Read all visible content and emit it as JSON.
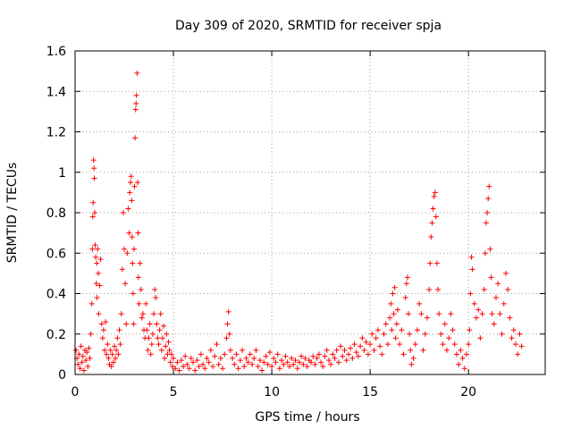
{
  "chart_data": {
    "type": "scatter",
    "title": "Day 309 of 2020, SRMTID for receiver spja",
    "xlabel": "GPS time / hours",
    "ylabel": "SRMTID / TECUs",
    "xlim": [
      0,
      23.9
    ],
    "ylim": [
      0,
      1.6
    ],
    "x_ticks": [
      0,
      5,
      10,
      15,
      20
    ],
    "x_tick_labels": [
      "0",
      "5",
      "10",
      "15",
      "20"
    ],
    "y_ticks": [
      0,
      0.2,
      0.4,
      0.6,
      0.8,
      1.0,
      1.2,
      1.4,
      1.6
    ],
    "y_tick_labels": [
      "0",
      "0.2",
      "0.4",
      "0.6",
      "0.8",
      "1",
      "1.2",
      "1.4",
      "1.6"
    ],
    "grid": true,
    "marker": "plus",
    "color": "#ff0000",
    "series": [
      {
        "name": "SRMTID",
        "points": [
          [
            0.05,
            0.12
          ],
          [
            0.1,
            0.08
          ],
          [
            0.15,
            0.05
          ],
          [
            0.2,
            0.1
          ],
          [
            0.25,
            0.03
          ],
          [
            0.3,
            0.14
          ],
          [
            0.35,
            0.06
          ],
          [
            0.4,
            0.09
          ],
          [
            0.45,
            0.02
          ],
          [
            0.5,
            0.12
          ],
          [
            0.55,
            0.07
          ],
          [
            0.6,
            0.11
          ],
          [
            0.65,
            0.04
          ],
          [
            0.7,
            0.13
          ],
          [
            0.75,
            0.08
          ],
          [
            0.8,
            0.2
          ],
          [
            0.85,
            0.35
          ],
          [
            0.88,
            0.62
          ],
          [
            0.9,
            0.78
          ],
          [
            0.92,
            0.85
          ],
          [
            0.94,
            1.06
          ],
          [
            0.96,
            1.02
          ],
          [
            0.98,
            0.97
          ],
          [
            1.0,
            0.8
          ],
          [
            1.02,
            0.64
          ],
          [
            1.05,
            0.58
          ],
          [
            1.08,
            0.45
          ],
          [
            1.1,
            0.55
          ],
          [
            1.12,
            0.38
          ],
          [
            1.15,
            0.62
          ],
          [
            1.18,
            0.5
          ],
          [
            1.2,
            0.3
          ],
          [
            1.25,
            0.44
          ],
          [
            1.3,
            0.57
          ],
          [
            1.35,
            0.25
          ],
          [
            1.4,
            0.18
          ],
          [
            1.45,
            0.22
          ],
          [
            1.5,
            0.12
          ],
          [
            1.55,
            0.26
          ],
          [
            1.6,
            0.1
          ],
          [
            1.65,
            0.15
          ],
          [
            1.7,
            0.08
          ],
          [
            1.75,
            0.05
          ],
          [
            1.8,
            0.12
          ],
          [
            1.85,
            0.04
          ],
          [
            1.9,
            0.1
          ],
          [
            1.95,
            0.06
          ],
          [
            2.0,
            0.14
          ],
          [
            2.05,
            0.08
          ],
          [
            2.1,
            0.12
          ],
          [
            2.15,
            0.18
          ],
          [
            2.2,
            0.1
          ],
          [
            2.25,
            0.22
          ],
          [
            2.3,
            0.15
          ],
          [
            2.35,
            0.3
          ],
          [
            2.4,
            0.52
          ],
          [
            2.45,
            0.8
          ],
          [
            2.5,
            0.62
          ],
          [
            2.55,
            0.45
          ],
          [
            2.6,
            0.25
          ],
          [
            2.65,
            0.6
          ],
          [
            2.7,
            0.82
          ],
          [
            2.75,
            0.7
          ],
          [
            2.78,
            0.9
          ],
          [
            2.82,
            0.95
          ],
          [
            2.85,
            0.98
          ],
          [
            2.88,
            0.86
          ],
          [
            2.9,
            0.68
          ],
          [
            2.92,
            0.55
          ],
          [
            2.95,
            0.4
          ],
          [
            2.98,
            0.25
          ],
          [
            3.0,
            0.62
          ],
          [
            3.02,
            0.93
          ],
          [
            3.05,
            1.17
          ],
          [
            3.08,
            1.31
          ],
          [
            3.1,
            1.34
          ],
          [
            3.12,
            1.38
          ],
          [
            3.15,
            1.49
          ],
          [
            3.18,
            0.95
          ],
          [
            3.2,
            0.7
          ],
          [
            3.22,
            0.48
          ],
          [
            3.25,
            0.35
          ],
          [
            3.3,
            0.55
          ],
          [
            3.35,
            0.42
          ],
          [
            3.4,
            0.28
          ],
          [
            3.45,
            0.3
          ],
          [
            3.5,
            0.22
          ],
          [
            3.55,
            0.18
          ],
          [
            3.6,
            0.35
          ],
          [
            3.65,
            0.22
          ],
          [
            3.7,
            0.12
          ],
          [
            3.75,
            0.18
          ],
          [
            3.8,
            0.25
          ],
          [
            3.85,
            0.1
          ],
          [
            3.9,
            0.15
          ],
          [
            3.95,
            0.2
          ],
          [
            4.0,
            0.3
          ],
          [
            4.05,
            0.42
          ],
          [
            4.1,
            0.38
          ],
          [
            4.15,
            0.25
          ],
          [
            4.2,
            0.18
          ],
          [
            4.25,
            0.15
          ],
          [
            4.3,
            0.22
          ],
          [
            4.35,
            0.3
          ],
          [
            4.4,
            0.12
          ],
          [
            4.45,
            0.18
          ],
          [
            4.5,
            0.24
          ],
          [
            4.55,
            0.08
          ],
          [
            4.6,
            0.14
          ],
          [
            4.65,
            0.2
          ],
          [
            4.7,
            0.1
          ],
          [
            4.75,
            0.16
          ],
          [
            4.8,
            0.12
          ],
          [
            4.85,
            0.06
          ],
          [
            4.9,
            0.1
          ],
          [
            4.95,
            0.04
          ],
          [
            5.0,
            0.08
          ],
          [
            5.1,
            0.03
          ],
          [
            5.2,
            0.06
          ],
          [
            5.3,
            0.02
          ],
          [
            5.4,
            0.07
          ],
          [
            5.5,
            0.04
          ],
          [
            5.6,
            0.09
          ],
          [
            5.7,
            0.05
          ],
          [
            5.8,
            0.03
          ],
          [
            5.9,
            0.08
          ],
          [
            6.0,
            0.06
          ],
          [
            6.1,
            0.02
          ],
          [
            6.2,
            0.07
          ],
          [
            6.3,
            0.04
          ],
          [
            6.4,
            0.1
          ],
          [
            6.5,
            0.05
          ],
          [
            6.6,
            0.03
          ],
          [
            6.7,
            0.08
          ],
          [
            6.8,
            0.06
          ],
          [
            6.9,
            0.12
          ],
          [
            7.0,
            0.04
          ],
          [
            7.1,
            0.09
          ],
          [
            7.2,
            0.15
          ],
          [
            7.3,
            0.05
          ],
          [
            7.4,
            0.08
          ],
          [
            7.5,
            0.03
          ],
          [
            7.6,
            0.1
          ],
          [
            7.7,
            0.18
          ],
          [
            7.75,
            0.25
          ],
          [
            7.8,
            0.31
          ],
          [
            7.85,
            0.2
          ],
          [
            7.9,
            0.12
          ],
          [
            8.0,
            0.08
          ],
          [
            8.1,
            0.05
          ],
          [
            8.2,
            0.1
          ],
          [
            8.3,
            0.03
          ],
          [
            8.4,
            0.07
          ],
          [
            8.5,
            0.12
          ],
          [
            8.6,
            0.04
          ],
          [
            8.7,
            0.08
          ],
          [
            8.8,
            0.06
          ],
          [
            8.9,
            0.1
          ],
          [
            9.0,
            0.05
          ],
          [
            9.1,
            0.08
          ],
          [
            9.2,
            0.12
          ],
          [
            9.3,
            0.04
          ],
          [
            9.4,
            0.07
          ],
          [
            9.5,
            0.02
          ],
          [
            9.6,
            0.06
          ],
          [
            9.7,
            0.09
          ],
          [
            9.8,
            0.05
          ],
          [
            9.9,
            0.11
          ],
          [
            10.0,
            0.04
          ],
          [
            10.1,
            0.08
          ],
          [
            10.2,
            0.06
          ],
          [
            10.3,
            0.1
          ],
          [
            10.4,
            0.03
          ],
          [
            10.5,
            0.07
          ],
          [
            10.6,
            0.05
          ],
          [
            10.7,
            0.09
          ],
          [
            10.8,
            0.06
          ],
          [
            10.9,
            0.04
          ],
          [
            11.0,
            0.08
          ],
          [
            11.1,
            0.05
          ],
          [
            11.2,
            0.07
          ],
          [
            11.3,
            0.03
          ],
          [
            11.4,
            0.06
          ],
          [
            11.5,
            0.09
          ],
          [
            11.6,
            0.05
          ],
          [
            11.7,
            0.08
          ],
          [
            11.8,
            0.04
          ],
          [
            11.9,
            0.07
          ],
          [
            12.0,
            0.06
          ],
          [
            12.1,
            0.09
          ],
          [
            12.2,
            0.05
          ],
          [
            12.3,
            0.08
          ],
          [
            12.4,
            0.1
          ],
          [
            12.5,
            0.06
          ],
          [
            12.6,
            0.04
          ],
          [
            12.7,
            0.09
          ],
          [
            12.8,
            0.12
          ],
          [
            12.9,
            0.07
          ],
          [
            13.0,
            0.05
          ],
          [
            13.1,
            0.1
          ],
          [
            13.2,
            0.08
          ],
          [
            13.3,
            0.12
          ],
          [
            13.4,
            0.06
          ],
          [
            13.5,
            0.14
          ],
          [
            13.6,
            0.09
          ],
          [
            13.7,
            0.12
          ],
          [
            13.8,
            0.07
          ],
          [
            13.9,
            0.1
          ],
          [
            14.0,
            0.13
          ],
          [
            14.1,
            0.08
          ],
          [
            14.2,
            0.15
          ],
          [
            14.3,
            0.11
          ],
          [
            14.4,
            0.09
          ],
          [
            14.5,
            0.14
          ],
          [
            14.6,
            0.18
          ],
          [
            14.7,
            0.12
          ],
          [
            14.8,
            0.16
          ],
          [
            14.9,
            0.1
          ],
          [
            15.0,
            0.15
          ],
          [
            15.1,
            0.2
          ],
          [
            15.2,
            0.12
          ],
          [
            15.3,
            0.18
          ],
          [
            15.4,
            0.22
          ],
          [
            15.5,
            0.14
          ],
          [
            15.6,
            0.1
          ],
          [
            15.7,
            0.2
          ],
          [
            15.8,
            0.25
          ],
          [
            15.9,
            0.15
          ],
          [
            16.0,
            0.28
          ],
          [
            16.05,
            0.35
          ],
          [
            16.1,
            0.22
          ],
          [
            16.15,
            0.4
          ],
          [
            16.2,
            0.3
          ],
          [
            16.25,
            0.43
          ],
          [
            16.3,
            0.18
          ],
          [
            16.35,
            0.25
          ],
          [
            16.4,
            0.32
          ],
          [
            16.5,
            0.15
          ],
          [
            16.6,
            0.22
          ],
          [
            16.7,
            0.1
          ],
          [
            16.8,
            0.38
          ],
          [
            16.85,
            0.45
          ],
          [
            16.9,
            0.48
          ],
          [
            16.95,
            0.3
          ],
          [
            17.0,
            0.2
          ],
          [
            17.05,
            0.12
          ],
          [
            17.1,
            0.05
          ],
          [
            17.2,
            0.08
          ],
          [
            17.3,
            0.15
          ],
          [
            17.4,
            0.22
          ],
          [
            17.5,
            0.35
          ],
          [
            17.6,
            0.3
          ],
          [
            17.7,
            0.12
          ],
          [
            17.8,
            0.2
          ],
          [
            17.9,
            0.28
          ],
          [
            18.0,
            0.42
          ],
          [
            18.05,
            0.55
          ],
          [
            18.1,
            0.68
          ],
          [
            18.15,
            0.75
          ],
          [
            18.2,
            0.82
          ],
          [
            18.25,
            0.88
          ],
          [
            18.3,
            0.9
          ],
          [
            18.35,
            0.78
          ],
          [
            18.4,
            0.55
          ],
          [
            18.45,
            0.42
          ],
          [
            18.5,
            0.3
          ],
          [
            18.6,
            0.2
          ],
          [
            18.7,
            0.15
          ],
          [
            18.8,
            0.25
          ],
          [
            18.9,
            0.12
          ],
          [
            19.0,
            0.18
          ],
          [
            19.1,
            0.3
          ],
          [
            19.2,
            0.22
          ],
          [
            19.3,
            0.15
          ],
          [
            19.4,
            0.1
          ],
          [
            19.5,
            0.05
          ],
          [
            19.6,
            0.12
          ],
          [
            19.7,
            0.08
          ],
          [
            19.8,
            0.03
          ],
          [
            19.9,
            0.1
          ],
          [
            20.0,
            0.15
          ],
          [
            20.05,
            0.22
          ],
          [
            20.1,
            0.4
          ],
          [
            20.15,
            0.58
          ],
          [
            20.2,
            0.52
          ],
          [
            20.3,
            0.35
          ],
          [
            20.4,
            0.28
          ],
          [
            20.5,
            0.32
          ],
          [
            20.6,
            0.18
          ],
          [
            20.7,
            0.3
          ],
          [
            20.8,
            0.42
          ],
          [
            20.85,
            0.6
          ],
          [
            20.9,
            0.75
          ],
          [
            20.95,
            0.8
          ],
          [
            21.0,
            0.87
          ],
          [
            21.05,
            0.93
          ],
          [
            21.1,
            0.62
          ],
          [
            21.15,
            0.48
          ],
          [
            21.2,
            0.3
          ],
          [
            21.3,
            0.25
          ],
          [
            21.4,
            0.38
          ],
          [
            21.5,
            0.45
          ],
          [
            21.6,
            0.3
          ],
          [
            21.7,
            0.2
          ],
          [
            21.8,
            0.35
          ],
          [
            21.9,
            0.5
          ],
          [
            22.0,
            0.42
          ],
          [
            22.1,
            0.28
          ],
          [
            22.2,
            0.18
          ],
          [
            22.3,
            0.22
          ],
          [
            22.4,
            0.15
          ],
          [
            22.5,
            0.1
          ],
          [
            22.6,
            0.2
          ],
          [
            22.7,
            0.14
          ]
        ]
      }
    ]
  }
}
